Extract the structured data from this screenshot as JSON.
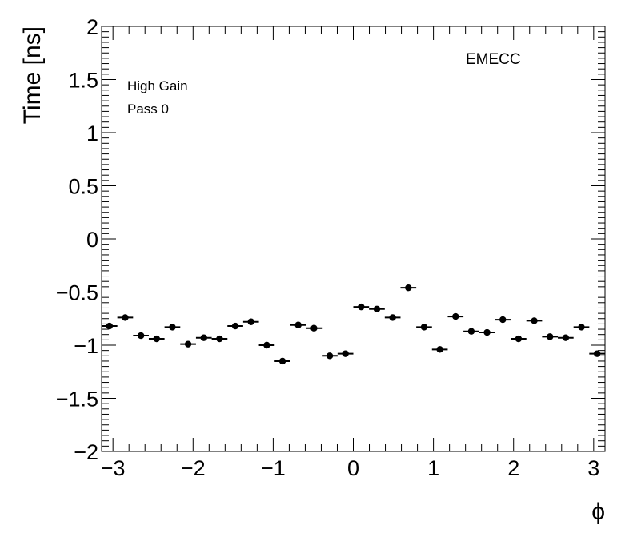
{
  "chart_data": {
    "type": "scatter",
    "title": "",
    "xlabel": "ϕ",
    "ylabel": "Time [ns]",
    "xlim": [
      -3.1416,
      3.1416
    ],
    "ylim": [
      -2,
      2
    ],
    "xticks": [
      -3,
      -2,
      -1,
      0,
      1,
      2,
      3
    ],
    "xtick_labels": [
      "−3",
      "−2",
      "−1",
      "0",
      "1",
      "2",
      "3"
    ],
    "yticks": [
      -2,
      -1.5,
      -1,
      -0.5,
      0,
      0.5,
      1,
      1.5,
      2
    ],
    "ytick_labels": [
      "−2",
      "−1.5",
      "−1",
      "−0.5",
      "0",
      "0.5",
      "1",
      "1.5",
      "2"
    ],
    "grid": false,
    "annotations": [
      "EMECC",
      "High Gain",
      "Pass 0"
    ],
    "bin_half_width": 0.0982,
    "series": [
      {
        "marker": "circle",
        "color": "#000000",
        "x": [
          -3.0434,
          -2.8471,
          -2.6507,
          -2.4544,
          -2.258,
          -2.0617,
          -1.8653,
          -1.669,
          -1.4726,
          -1.2763,
          -1.0799,
          -0.8836,
          -0.6872,
          -0.4909,
          -0.2945,
          -0.0982,
          0.0982,
          0.2945,
          0.4909,
          0.6872,
          0.8836,
          1.0799,
          1.2763,
          1.4726,
          1.669,
          1.8653,
          2.0617,
          2.258,
          2.4544,
          2.6507,
          2.8471,
          3.0434
        ],
        "y": [
          -0.82,
          -0.74,
          -0.91,
          -0.94,
          -0.83,
          -0.99,
          -0.93,
          -0.94,
          -0.82,
          -0.78,
          -1.0,
          -1.15,
          -0.81,
          -0.84,
          -1.1,
          -1.08,
          -0.64,
          -0.66,
          -0.74,
          -0.46,
          -0.83,
          -1.04,
          -0.73,
          -0.87,
          -0.88,
          -0.76,
          -0.94,
          -0.77,
          -0.92,
          -0.93,
          -0.83,
          -1.08
        ]
      }
    ]
  }
}
